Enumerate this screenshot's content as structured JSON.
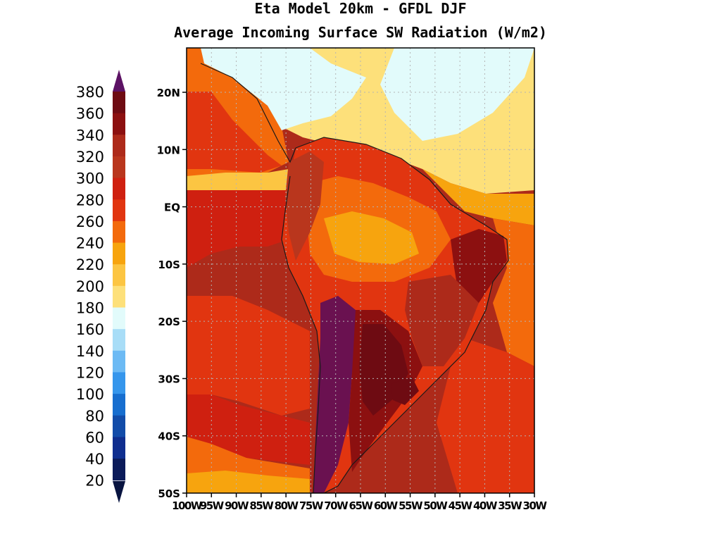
{
  "title": {
    "line1": "Eta Model 20km - GFDL DJF",
    "line2": "Average Incoming Surface SW Radiation (W/m2)"
  },
  "colorbar": {
    "levels": [
      "380",
      "360",
      "340",
      "320",
      "300",
      "280",
      "260",
      "240",
      "220",
      "200",
      "180",
      "160",
      "140",
      "120",
      "100",
      "80",
      "60",
      "40",
      "20"
    ],
    "colors": [
      "#6a1150",
      "#6e0b12",
      "#8c1010",
      "#ad2a1a",
      "#b9361d",
      "#cf2010",
      "#e13510",
      "#f36a0c",
      "#f7a40e",
      "#fcc542",
      "#fde07a",
      "#e2fbfb",
      "#a8ddf7",
      "#6cbaf4",
      "#3596ec",
      "#176ecf",
      "#124ca9",
      "#0f2e8f",
      "#0b1b5a"
    ],
    "max_color": "#5c1264",
    "min_color": "#081440"
  },
  "map": {
    "lat_labels": [
      "20N",
      "10N",
      "EQ",
      "10S",
      "20S",
      "30S",
      "40S",
      "50S"
    ],
    "lon_labels": [
      "100W",
      "95W",
      "90W",
      "85W",
      "80W",
      "75W",
      "70W",
      "65W",
      "60W",
      "55W",
      "50W",
      "45W",
      "40W",
      "35W",
      "30W"
    ],
    "regions": {
      "ocean_south": "#ad2a1a",
      "ocean_band_mid": "#cf2010",
      "ocean_band_south": "#e13510",
      "ocean_east": "#cf2010",
      "atlantic_north": "#fde07a",
      "caribbean": "#e2fbfb",
      "pacific_north": "#f36a0c",
      "amazon": "#f7a40e",
      "andes_south": "#6a1150",
      "pampas": "#8c1010",
      "patagonia_pacific": "#f7a40e"
    }
  }
}
